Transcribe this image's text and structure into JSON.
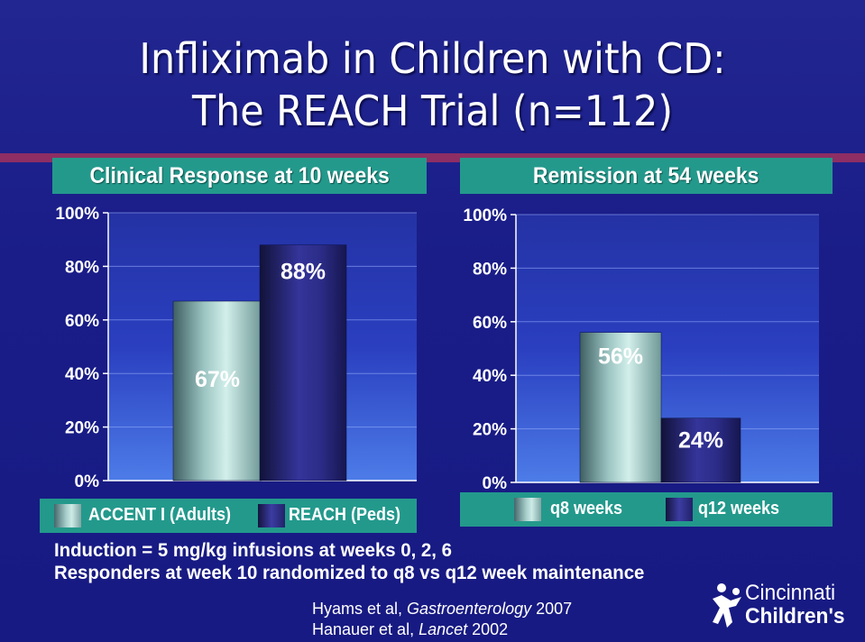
{
  "slide": {
    "title_line1": "Infliximab in Children with CD:",
    "title_line2": "The REACH Trial (n=112)",
    "notes": [
      "Induction = 5 mg/kg infusions at weeks 0, 2, 6",
      "Responders at week 10 randomized to q8 vs q12 week maintenance"
    ],
    "references": [
      {
        "author": "Hyams et al, ",
        "journal": "Gastroenterology",
        "year": " 2007"
      },
      {
        "author": "Hanauer et al, ",
        "journal": "Lancet",
        "year": " 2002"
      }
    ],
    "logo": {
      "line1": "Cincinnati",
      "line2": "Children's"
    },
    "colors": {
      "background": "#1b1e8c",
      "header_teal": "#23998c",
      "divider": "#8e2e64",
      "bar_light": "#b9dbd8",
      "bar_dark": "#2b2b8a"
    }
  },
  "chart_data": [
    {
      "type": "bar",
      "title": "Clinical Response at 10 weeks",
      "categories": [
        "ACCENT I (Adults)",
        "REACH (Peds)"
      ],
      "values": [
        67,
        88
      ],
      "data_labels": [
        "67%",
        "88%"
      ],
      "legend": [
        "ACCENT I (Adults)",
        "REACH (Peds)"
      ],
      "ylim": [
        0,
        100
      ],
      "yticks": [
        "0%",
        "20%",
        "40%",
        "60%",
        "80%",
        "100%"
      ],
      "grid": true,
      "legend_position": "bottom"
    },
    {
      "type": "bar",
      "title": "Remission at 54 weeks",
      "categories": [
        "q8 weeks",
        "q12 weeks"
      ],
      "values": [
        56,
        24
      ],
      "data_labels": [
        "56%",
        "24%"
      ],
      "legend": [
        "q8 weeks",
        "q12 weeks"
      ],
      "ylim": [
        0,
        100
      ],
      "yticks": [
        "0%",
        "20%",
        "40%",
        "60%",
        "80%",
        "100%"
      ],
      "grid": true,
      "legend_position": "bottom"
    }
  ]
}
